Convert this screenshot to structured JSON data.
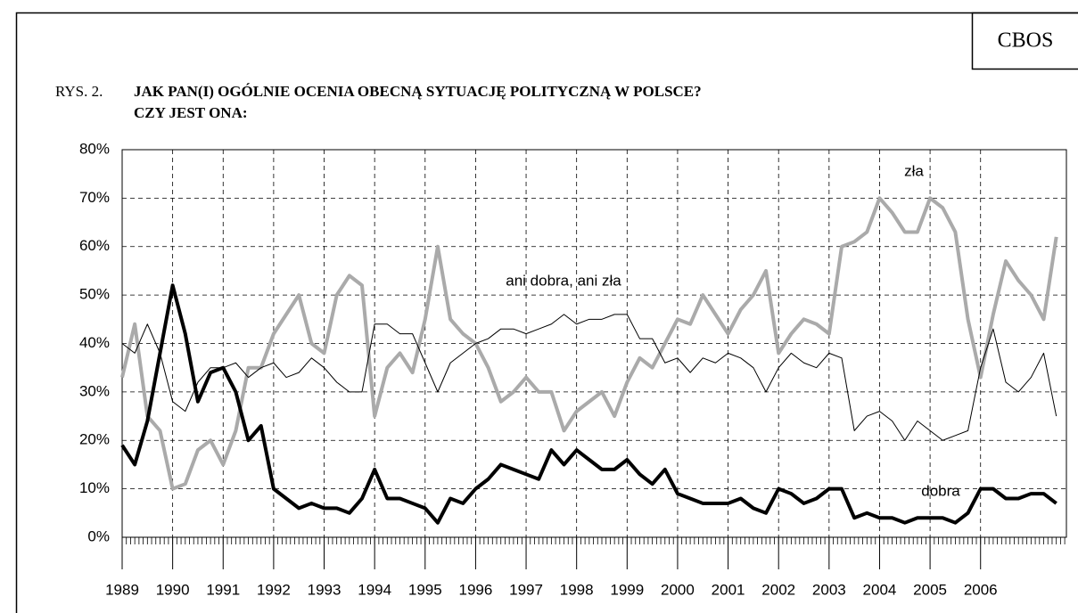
{
  "chart_data": {
    "type": "line",
    "source": "CBOS",
    "figure_label": "RYS. 2.",
    "title": "JAK PAN(I) OGÓLNIE OCENIA OBECNĄ SYTUACJĘ POLITYCZNĄ W POLSCE?",
    "subtitle": "CZY JEST ONA:",
    "x": [
      1989,
      1989.25,
      1989.5,
      1989.75,
      1990,
      1990.25,
      1990.5,
      1990.75,
      1991,
      1991.25,
      1991.5,
      1991.75,
      1992,
      1992.25,
      1992.5,
      1992.75,
      1993,
      1993.25,
      1993.5,
      1993.75,
      1994,
      1994.25,
      1994.5,
      1994.75,
      1995,
      1995.25,
      1995.5,
      1995.75,
      1996,
      1996.25,
      1996.5,
      1996.75,
      1997,
      1997.25,
      1997.5,
      1997.75,
      1998,
      1998.25,
      1998.5,
      1998.75,
      1999,
      1999.25,
      1999.5,
      1999.75,
      2000,
      2000.25,
      2000.5,
      2000.75,
      2001,
      2001.25,
      2001.5,
      2001.75,
      2002,
      2002.25,
      2002.5,
      2002.75,
      2003,
      2003.25,
      2003.5,
      2003.75,
      2004,
      2004.25,
      2004.5,
      2004.75,
      2005,
      2005.25,
      2005.5,
      2005.75,
      2006,
      2006.25,
      2006.5,
      2006.75,
      2007,
      2007.25,
      2007.5
    ],
    "series": [
      {
        "name": "zła",
        "color": "#aaaaaa",
        "width": 4,
        "values": [
          33,
          44,
          25,
          22,
          10,
          11,
          18,
          20,
          15,
          22,
          35,
          35,
          42,
          46,
          50,
          40,
          38,
          50,
          54,
          52,
          25,
          35,
          38,
          34,
          45,
          60,
          45,
          42,
          40,
          35,
          28,
          30,
          33,
          30,
          30,
          22,
          26,
          28,
          30,
          25,
          32,
          37,
          35,
          40,
          45,
          44,
          50,
          46,
          42,
          47,
          50,
          55,
          38,
          42,
          45,
          44,
          42,
          60,
          61,
          63,
          70,
          67,
          63,
          63,
          70,
          68,
          63,
          45,
          33,
          46,
          57,
          53,
          50,
          45,
          62
        ]
      },
      {
        "name": "ani dobra, ani zła",
        "color": "#000000",
        "width": 1,
        "values": [
          40,
          38,
          44,
          38,
          28,
          26,
          32,
          35,
          35,
          36,
          33,
          35,
          36,
          33,
          34,
          37,
          35,
          32,
          30,
          30,
          44,
          44,
          42,
          42,
          36,
          30,
          36,
          38,
          40,
          41,
          43,
          43,
          42,
          43,
          44,
          46,
          44,
          45,
          45,
          46,
          46,
          41,
          41,
          36,
          37,
          34,
          37,
          36,
          38,
          37,
          35,
          30,
          35,
          38,
          36,
          35,
          38,
          37,
          22,
          25,
          26,
          24,
          20,
          24,
          22,
          20,
          21,
          22,
          35,
          43,
          32,
          30,
          33,
          38,
          25
        ]
      },
      {
        "name": "dobra",
        "color": "#000000",
        "width": 4,
        "values": [
          19,
          15,
          24,
          38,
          52,
          42,
          28,
          34,
          35,
          30,
          20,
          23,
          10,
          8,
          6,
          7,
          6,
          6,
          5,
          8,
          14,
          8,
          8,
          7,
          6,
          3,
          8,
          7,
          10,
          12,
          15,
          14,
          13,
          12,
          18,
          15,
          18,
          16,
          14,
          14,
          16,
          13,
          11,
          14,
          9,
          8,
          7,
          7,
          7,
          8,
          6,
          5,
          10,
          9,
          7,
          8,
          10,
          10,
          4,
          5,
          4,
          4,
          3,
          4,
          4,
          4,
          3,
          5,
          10,
          10,
          8,
          8,
          9,
          9,
          7
        ]
      }
    ],
    "xlim": [
      1989,
      2007.7
    ],
    "xticks": [
      1989,
      1990,
      1991,
      1992,
      1993,
      1994,
      1995,
      1996,
      1997,
      1998,
      1999,
      2000,
      2001,
      2002,
      2003,
      2004,
      2005,
      2006
    ],
    "ylim": [
      0,
      80
    ],
    "yticks": [
      {
        "value": 0,
        "label": "0%"
      },
      {
        "value": 10,
        "label": "10%"
      },
      {
        "value": 20,
        "label": "20%"
      },
      {
        "value": 30,
        "label": "30%"
      },
      {
        "value": 40,
        "label": "40%"
      },
      {
        "value": 50,
        "label": "50%"
      },
      {
        "value": 60,
        "label": "60%"
      },
      {
        "value": 70,
        "label": "70%"
      },
      {
        "value": 80,
        "label": "80%"
      }
    ],
    "grid": true
  }
}
